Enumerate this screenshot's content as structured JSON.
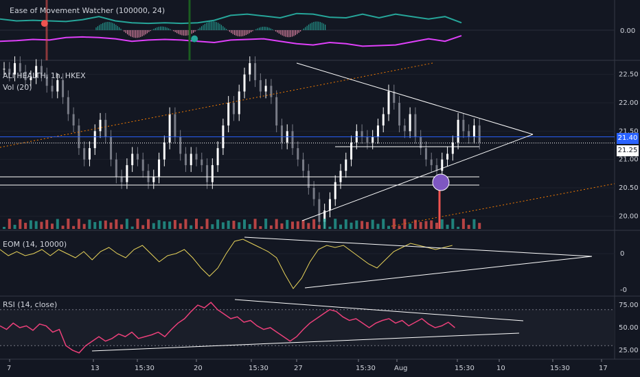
{
  "colors": {
    "background": "#131722",
    "grid": "#1e222d",
    "text": "#d1d4dc",
    "up_candle": "#ffffff",
    "down_candle": "#787b86",
    "vol_up": "#26a69a",
    "vol_down": "#ef5350",
    "trend_line": "#ffffff",
    "guide_line": "#f57c00",
    "price_line": "#2962ff",
    "eom_line": "#e8d35a",
    "rsi_line": "#ec407a",
    "watcher_upper": "#26a69a",
    "watcher_lower": "#e040fb",
    "watcher_hist": "#f48fb1",
    "marker_highlight": "#7e57c2"
  },
  "panes": {
    "watcher": {
      "title": "Ease of Movement Watcher (100000, 24)",
      "zero_label": "0.00"
    },
    "price": {
      "title": "ALI HEALTH, 1h, HKEX",
      "vol_label": "Vol (20)",
      "current_price_label": "21.40",
      "line_price_label": "21.25"
    },
    "eom": {
      "title": "EOM (14, 10000)"
    },
    "rsi": {
      "title": "RSI (14, close)"
    }
  },
  "x_axis_labels": [
    "7",
    "13",
    "15:30",
    "20",
    "15:30",
    "27",
    "15:30",
    "Aug",
    "15:30",
    "10",
    "15:30",
    "17"
  ],
  "chart_data": [
    {
      "type": "line",
      "title": "Ease of Movement Watcher (100000, 24)",
      "y_ticks": [
        0.0
      ],
      "series": [
        {
          "x": [
            0,
            10,
            20,
            30,
            40,
            50,
            60,
            70,
            80,
            90,
            100,
            110,
            120,
            130,
            140,
            150,
            160,
            170,
            180,
            190,
            200,
            210,
            220,
            230,
            240,
            250,
            260,
            270,
            280
          ],
          "values": [
            0.9,
            0.75,
            0.8,
            0.75,
            0.7,
            0.85,
            1.1,
            0.75,
            0.6,
            0.55,
            0.6,
            0.55,
            0.6,
            0.8,
            1.2,
            1.3,
            1.15,
            1.0,
            1.35,
            1.3,
            1.05,
            1.0,
            1.3,
            1.0,
            1.3,
            1.1,
            0.9,
            1.1,
            0.6
          ]
        },
        {
          "x": [
            0,
            10,
            20,
            30,
            40,
            50,
            60,
            70,
            80,
            90,
            100,
            110,
            120,
            130,
            140,
            150,
            160,
            170,
            180,
            190,
            200,
            210,
            220,
            230,
            240,
            250,
            260,
            270,
            280
          ],
          "values": [
            -0.9,
            -0.85,
            -0.75,
            -0.8,
            -0.6,
            -0.55,
            -0.6,
            -0.7,
            -0.9,
            -0.8,
            -0.75,
            -0.8,
            -0.9,
            -1.0,
            -0.8,
            -0.75,
            -0.7,
            -0.9,
            -1.1,
            -1.2,
            -1.0,
            -1.1,
            -1.3,
            -1.25,
            -1.2,
            -0.95,
            -0.7,
            -0.9,
            -0.45
          ]
        }
      ],
      "markers": [
        {
          "x": 27,
          "y": 0.55,
          "color": "#ef5350"
        },
        {
          "x": 118,
          "y": -0.7,
          "color": "#26a69a"
        }
      ]
    },
    {
      "type": "candlestick",
      "title": "ALI HEALTH, 1h, HKEX",
      "y_ticks": [
        20.0,
        20.5,
        21.0,
        21.5,
        22.0,
        22.5
      ],
      "ylim": [
        19.75,
        22.75
      ],
      "current_price": 21.4,
      "line_price": 21.25,
      "close": [
        22.6,
        22.5,
        22.7,
        22.55,
        22.4,
        22.45,
        22.65,
        22.5,
        22.3,
        22.2,
        22.4,
        22.1,
        21.8,
        21.6,
        21.2,
        21.0,
        21.2,
        21.5,
        21.7,
        21.4,
        21.0,
        20.7,
        20.6,
        20.9,
        21.1,
        21.0,
        20.8,
        20.6,
        20.7,
        21.0,
        21.3,
        21.8,
        21.4,
        21.1,
        20.9,
        21.1,
        21.0,
        20.9,
        20.6,
        20.9,
        21.2,
        21.6,
        22.0,
        21.8,
        22.2,
        22.5,
        22.7,
        22.4,
        22.2,
        22.3,
        22.1,
        21.6,
        21.3,
        21.5,
        21.2,
        21.0,
        20.8,
        20.5,
        20.3,
        19.9,
        20.1,
        20.3,
        20.6,
        20.8,
        21.0,
        21.3,
        21.5,
        21.4,
        21.3,
        21.4,
        21.6,
        21.8,
        22.2,
        22.0,
        21.6,
        21.5,
        21.8,
        21.4,
        21.2,
        21.0,
        20.9,
        20.8,
        21.0,
        21.1,
        21.3,
        21.7,
        21.5,
        21.4,
        21.6,
        21.3
      ],
      "ma_guides": "2 dotted orange",
      "trend_lines": "converging triangle",
      "horizontal_levels": [
        21.25,
        20.8,
        20.65
      ]
    },
    {
      "type": "line",
      "title": "EOM (14, 10000)",
      "y_ticks": [
        0,
        0
      ],
      "values": [
        0.1,
        -0.05,
        0.05,
        -0.05,
        0.0,
        0.1,
        -0.05,
        0.1,
        0.0,
        -0.1,
        0.05,
        -0.15,
        0.05,
        0.15,
        0.0,
        -0.1,
        0.1,
        0.2,
        0.0,
        -0.2,
        -0.05,
        0.0,
        0.1,
        -0.1,
        -0.35,
        -0.55,
        -0.35,
        0.0,
        0.3,
        0.35,
        0.25,
        0.15,
        0.05,
        -0.1,
        -0.5,
        -0.85,
        -0.6,
        -0.2,
        0.1,
        0.2,
        0.15,
        0.2,
        0.05,
        -0.1,
        -0.25,
        -0.35,
        -0.15,
        0.05,
        0.15,
        0.25,
        0.2,
        0.15,
        0.1,
        0.15,
        0.2
      ]
    },
    {
      "type": "line",
      "title": "RSI (14, close)",
      "y_ticks": [
        25.0,
        50.0,
        75.0
      ],
      "ylim": [
        15,
        85
      ],
      "bands": [
        30,
        70
      ],
      "values": [
        52,
        48,
        55,
        50,
        52,
        47,
        54,
        52,
        45,
        48,
        30,
        25,
        22,
        30,
        35,
        40,
        35,
        38,
        43,
        40,
        45,
        38,
        40,
        42,
        45,
        40,
        48,
        55,
        60,
        68,
        75,
        72,
        78,
        70,
        65,
        60,
        62,
        56,
        58,
        52,
        48,
        50,
        45,
        40,
        35,
        40,
        48,
        55,
        60,
        65,
        70,
        68,
        62,
        58,
        60,
        55,
        50,
        55,
        58,
        60,
        55,
        58,
        52,
        56,
        60,
        54,
        50,
        52,
        56,
        50
      ]
    }
  ]
}
